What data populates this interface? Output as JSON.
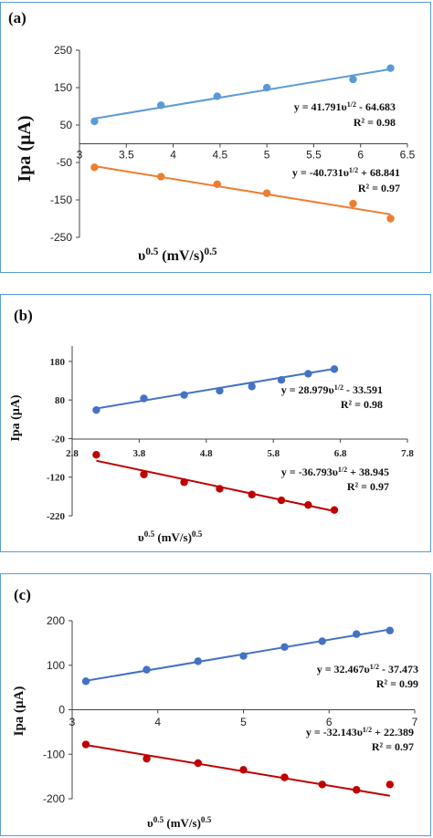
{
  "chart_data": [
    {
      "type": "scatter",
      "panel_label": "(a)",
      "ylabel": "Ipa (μA)",
      "xlabel_base": "υ",
      "xlabel_sup1": "0.5",
      "xlabel_mid": " (mV/s)",
      "xlabel_sup2": "0.5",
      "xlim": [
        3,
        6.5
      ],
      "ylim": [
        -250,
        250
      ],
      "xticks": [
        "3",
        "3.5",
        "4",
        "4.5",
        "5",
        "5.5",
        "6",
        "6.5"
      ],
      "xtick_values": [
        3,
        3.5,
        4,
        4.5,
        5,
        5.5,
        6,
        6.5
      ],
      "yticks": [
        "250",
        "150",
        "50",
        "-50",
        "-150",
        "-250"
      ],
      "ytick_values": [
        250,
        150,
        50,
        -50,
        -150,
        -250
      ],
      "series": [
        {
          "color": "#5b9bd5",
          "slope": 41.791,
          "intercept": -64.683,
          "x": [
            3.16,
            3.87,
            4.47,
            5.0,
            5.92,
            6.32
          ],
          "y": [
            60,
            103,
            127,
            150,
            172,
            202
          ],
          "equation": "y = 41.791υ1/2 - 64.683",
          "r2": "R² = 0.98"
        },
        {
          "color": "#ed7d31",
          "slope": -40.731,
          "intercept": 68.841,
          "x": [
            3.16,
            3.87,
            4.47,
            5.0,
            5.92,
            6.32
          ],
          "y": [
            -63,
            -88,
            -108,
            -132,
            -160,
            -200
          ],
          "equation": "y = -40.731υ1/2 + 68.841",
          "r2": "R² = 0.97"
        }
      ]
    },
    {
      "type": "scatter",
      "panel_label": "(b)",
      "ylabel": "Ipa (μA)",
      "xlabel_base": "υ",
      "xlabel_sup1": "0.5",
      "xlabel_mid": " (mV/s)",
      "xlabel_sup2": "0.5",
      "xlim": [
        2.8,
        7.8
      ],
      "ylim": [
        -220,
        220
      ],
      "xticks": [
        "2.8",
        "3.8",
        "4.8",
        "5.8",
        "6.8",
        "7.8"
      ],
      "xtick_values": [
        2.8,
        3.8,
        4.8,
        5.8,
        6.8,
        7.8
      ],
      "yticks": [
        "180",
        "80",
        "-20",
        "-120",
        "-220"
      ],
      "ytick_values": [
        180,
        80,
        -20,
        -120,
        -220
      ],
      "series": [
        {
          "color": "#4472c4",
          "slope": 28.979,
          "intercept": -33.591,
          "x": [
            3.16,
            3.87,
            4.47,
            5.0,
            5.48,
            5.92,
            6.32,
            6.71
          ],
          "y": [
            54,
            84,
            93,
            104,
            115,
            132,
            148,
            160
          ],
          "equation": "y = 28.979υ1/2 - 33.591",
          "r2": "R² = 0.98"
        },
        {
          "color": "#c00000",
          "slope": -36.793,
          "intercept": 38.945,
          "x": [
            3.16,
            3.87,
            4.47,
            5.0,
            5.48,
            5.92,
            6.32,
            6.71
          ],
          "y": [
            -62,
            -113,
            -133,
            -150,
            -165,
            -180,
            -192,
            -205
          ],
          "equation": "y = -36.793υ1/2 + 38.945",
          "r2": "R² = 0.97"
        }
      ]
    },
    {
      "type": "scatter",
      "panel_label": "(c)",
      "ylabel": "Ipa (μA)",
      "xlabel_base": "υ",
      "xlabel_sup1": "0.5",
      "xlabel_mid": " (mV/s)",
      "xlabel_sup2": "0.5",
      "xlim": [
        3,
        7
      ],
      "ylim": [
        -200,
        200
      ],
      "xticks": [
        "3",
        "4",
        "5",
        "6",
        "7"
      ],
      "xtick_values": [
        3,
        4,
        5,
        6,
        7
      ],
      "yticks": [
        "200",
        "100",
        "0",
        "-100",
        "-200"
      ],
      "ytick_values": [
        200,
        100,
        0,
        -100,
        -200
      ],
      "series": [
        {
          "color": "#4472c4",
          "slope": 32.467,
          "intercept": -37.473,
          "x": [
            3.16,
            3.87,
            4.47,
            5.0,
            5.48,
            5.92,
            6.32,
            6.71
          ],
          "y": [
            64,
            90,
            109,
            121,
            141,
            154,
            170,
            178
          ],
          "equation": "y = 32.467υ1/2 - 37.473",
          "r2": "R² = 0.99"
        },
        {
          "color": "#c00000",
          "slope": -32.143,
          "intercept": 22.389,
          "x": [
            3.16,
            3.87,
            4.47,
            5.0,
            5.48,
            5.92,
            6.32,
            6.71
          ],
          "y": [
            -78,
            -110,
            -120,
            -135,
            -152,
            -168,
            -180,
            -168
          ],
          "equation": "y = -32.143υ1/2 + 22.389",
          "r2": "R² = 0.97"
        }
      ]
    }
  ]
}
